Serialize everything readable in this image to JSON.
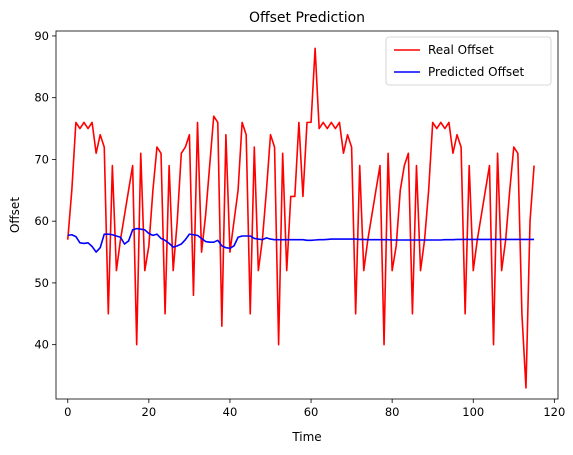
{
  "chart_data": {
    "type": "line",
    "title": "Offset Prediction",
    "xlabel": "Time",
    "ylabel": "Offset",
    "xlim": [
      -2.9,
      120.9
    ],
    "ylim": [
      31.2,
      90.8
    ],
    "xticks": [
      0,
      20,
      40,
      60,
      80,
      100,
      120
    ],
    "yticks": [
      40,
      50,
      60,
      70,
      80,
      90
    ],
    "grid": false,
    "legend_position": "top-right",
    "series": [
      {
        "name": "Real Offset",
        "color": "#ff0000",
        "x": [
          0,
          1,
          2,
          3,
          4,
          5,
          6,
          7,
          8,
          9,
          10,
          11,
          12,
          13,
          14,
          15,
          16,
          17,
          18,
          19,
          20,
          21,
          22,
          23,
          24,
          25,
          26,
          27,
          28,
          29,
          30,
          31,
          32,
          33,
          34,
          35,
          36,
          37,
          38,
          39,
          40,
          41,
          42,
          43,
          44,
          45,
          46,
          47,
          48,
          49,
          50,
          51,
          52,
          53,
          54,
          55,
          56,
          57,
          58,
          59,
          60,
          61,
          62,
          63,
          64,
          65,
          66,
          67,
          68,
          69,
          70,
          71,
          72,
          73,
          74,
          75,
          76,
          77,
          78,
          79,
          80,
          81,
          82,
          83,
          84,
          85,
          86,
          87,
          88,
          89,
          90,
          91,
          92,
          93,
          94,
          95,
          96,
          97,
          98,
          99,
          100,
          101,
          102,
          103,
          104,
          105,
          106,
          107,
          108,
          109,
          110,
          111,
          112,
          113,
          114,
          115
        ],
        "y": [
          57,
          65,
          76,
          75,
          76,
          75,
          76,
          71,
          74,
          72,
          45,
          69,
          52,
          57,
          61,
          65,
          69,
          40,
          71,
          52,
          56,
          65,
          72,
          71,
          45,
          69,
          52,
          60,
          71,
          72,
          74,
          48,
          76,
          55,
          61,
          69,
          77,
          76,
          43,
          74,
          55,
          60,
          65,
          76,
          74,
          45,
          72,
          52,
          57,
          65,
          74,
          72,
          40,
          71,
          52,
          64,
          64,
          76,
          64,
          76,
          76,
          88,
          75,
          76,
          75,
          76,
          75,
          76,
          71,
          74,
          72,
          45,
          69,
          52,
          57,
          61,
          65,
          69,
          40,
          71,
          52,
          56,
          65,
          69,
          71,
          45,
          69,
          52,
          57,
          65,
          76,
          75,
          76,
          75,
          76,
          71,
          74,
          72,
          45,
          69,
          52,
          57,
          61,
          65,
          69,
          40,
          71,
          52,
          57,
          65,
          72,
          71,
          45,
          33,
          60,
          69
        ]
      },
      {
        "name": "Predicted Offset",
        "color": "#0000ff",
        "x": [
          0,
          1,
          2,
          3,
          4,
          5,
          6,
          7,
          8,
          9,
          10,
          11,
          12,
          13,
          14,
          15,
          16,
          17,
          18,
          19,
          20,
          21,
          22,
          23,
          24,
          25,
          26,
          27,
          28,
          29,
          30,
          31,
          32,
          33,
          34,
          35,
          36,
          37,
          38,
          39,
          40,
          41,
          42,
          43,
          44,
          45,
          46,
          47,
          48,
          49,
          50,
          51,
          52,
          53,
          54,
          55,
          56,
          57,
          58,
          59,
          60,
          61,
          62,
          63,
          64,
          65,
          66,
          67,
          68,
          69,
          70,
          71,
          72,
          73,
          74,
          75,
          76,
          77,
          78,
          79,
          80,
          81,
          82,
          83,
          84,
          85,
          86,
          87,
          88,
          89,
          90,
          91,
          92,
          93,
          94,
          95,
          96,
          97,
          98,
          99,
          100,
          101,
          102,
          103,
          104,
          105,
          106,
          107,
          108,
          109,
          110,
          111,
          112,
          113,
          114,
          115
        ],
        "y": [
          57.7,
          57.8,
          57.5,
          56.5,
          56.4,
          56.5,
          55.9,
          55.0,
          55.7,
          57.9,
          57.9,
          57.8,
          57.6,
          57.4,
          56.3,
          56.8,
          58.6,
          58.8,
          58.7,
          58.6,
          58.0,
          57.7,
          57.9,
          57.2,
          56.9,
          56.4,
          55.8,
          56.0,
          56.3,
          57.0,
          57.9,
          57.8,
          57.7,
          57.2,
          56.7,
          56.6,
          56.6,
          56.9,
          56.0,
          55.7,
          55.6,
          56.0,
          57.4,
          57.6,
          57.6,
          57.6,
          57.2,
          57.1,
          57.0,
          57.3,
          57.1,
          57.0,
          57.0,
          57.0,
          57.0,
          57.0,
          57.0,
          57.0,
          57.0,
          56.9,
          56.9,
          56.95,
          57.0,
          57.0,
          57.05,
          57.1,
          57.1,
          57.1,
          57.1,
          57.1,
          57.1,
          57.1,
          57.05,
          57.05,
          57.0,
          57.0,
          57.0,
          57.0,
          57.0,
          57.0,
          56.95,
          56.95,
          56.95,
          56.95,
          56.95,
          56.95,
          56.95,
          56.95,
          56.95,
          56.95,
          56.95,
          56.95,
          56.95,
          57.0,
          57.0,
          57.0,
          57.05,
          57.05,
          57.05,
          57.05,
          57.05,
          57.05,
          57.05,
          57.05,
          57.05,
          57.05,
          57.05,
          57.05,
          57.05,
          57.05,
          57.05,
          57.05,
          57.05,
          57.05,
          57.05,
          57.05
        ]
      }
    ]
  }
}
